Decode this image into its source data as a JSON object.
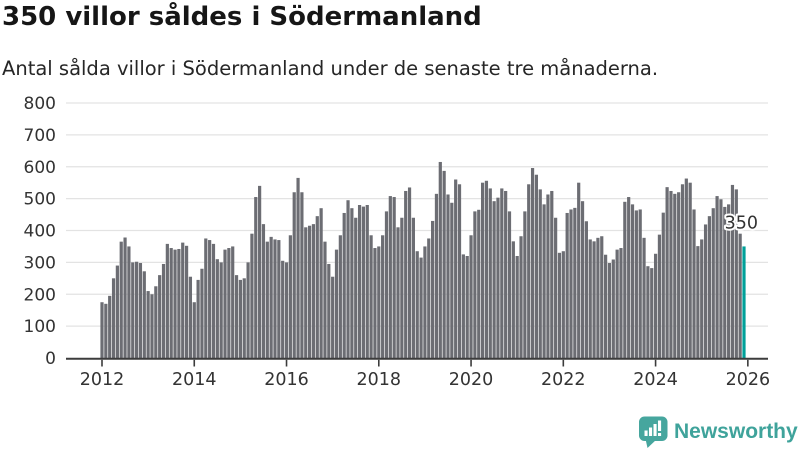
{
  "header": {
    "title": "350 villor såldes i Södermanland",
    "subtitle": "Antal sålda villor i Södermanland under de senaste tre månaderna."
  },
  "chart_data": {
    "type": "bar",
    "title": "350 villor såldes i Södermanland",
    "subtitle": "Antal sålda villor i Södermanland under de senaste tre månaderna.",
    "x_unit": "month",
    "x_start": "2012-01",
    "x_end": "2025-12",
    "x_tick_labels": [
      "2012",
      "2014",
      "2016",
      "2018",
      "2020",
      "2022",
      "2024",
      "2026"
    ],
    "y_tick_labels": [
      "0",
      "100",
      "200",
      "300",
      "400",
      "500",
      "600",
      "700",
      "800"
    ],
    "y_ticks": [
      0,
      100,
      200,
      300,
      400,
      500,
      600,
      700,
      800
    ],
    "ylim": [
      0,
      800
    ],
    "grid": true,
    "legend": false,
    "series_name": "Antal sålda villor, rullande tre månader",
    "values_by_year": {
      "2012": [
        175,
        170,
        195,
        250,
        290,
        365,
        378,
        350,
        300,
        302,
        298,
        272
      ],
      "2013": [
        210,
        200,
        225,
        260,
        295,
        358,
        345,
        340,
        342,
        362,
        352,
        255
      ],
      "2014": [
        175,
        245,
        280,
        375,
        370,
        358,
        310,
        300,
        340,
        345,
        350,
        260
      ],
      "2015": [
        245,
        250,
        300,
        390,
        505,
        540,
        420,
        365,
        380,
        372,
        370,
        305
      ],
      "2016": [
        300,
        385,
        520,
        565,
        520,
        410,
        415,
        420,
        445,
        470,
        365,
        295
      ],
      "2017": [
        255,
        340,
        385,
        455,
        495,
        470,
        440,
        480,
        475,
        480,
        385,
        345
      ],
      "2018": [
        350,
        385,
        460,
        508,
        505,
        410,
        440,
        524,
        535,
        440,
        335,
        315
      ],
      "2019": [
        350,
        375,
        430,
        515,
        615,
        587,
        513,
        487,
        560,
        545,
        325,
        320
      ],
      "2020": [
        385,
        460,
        465,
        550,
        556,
        532,
        492,
        503,
        532,
        524,
        460,
        366
      ],
      "2021": [
        320,
        382,
        460,
        545,
        596,
        575,
        529,
        482,
        513,
        524,
        440,
        330
      ],
      "2022": [
        335,
        455,
        466,
        471,
        550,
        492,
        429,
        372,
        366,
        377,
        382,
        324
      ],
      "2023": [
        298,
        309,
        340,
        345,
        490,
        505,
        482,
        463,
        466,
        377,
        288,
        282
      ],
      "2024": [
        327,
        387,
        456,
        536,
        524,
        515,
        520,
        545,
        563,
        550,
        466,
        351
      ],
      "2025": [
        372,
        419,
        445,
        470,
        508,
        498,
        474,
        482,
        543,
        529,
        390,
        350
      ]
    },
    "highlight": {
      "position": "last-bar",
      "value": 350,
      "label": "350"
    },
    "colors": {
      "bar": "#6c6d73",
      "highlight_bar": "#00a099",
      "gridline": "#e3e3e3",
      "axis": "#3c3c3c",
      "tick_text": "#333333",
      "annotation_text": "#333333",
      "annotation_halo": "#ffffff"
    }
  },
  "branding": {
    "name": "Newsworthy",
    "icon": "newsworthy-speech-bubble-chart-icon",
    "color": "#3fa39b",
    "icon_color": "#46a69e"
  }
}
